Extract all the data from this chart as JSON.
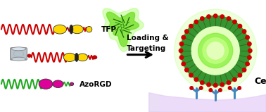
{
  "bg_color": "#ffffff",
  "arrow_text_line1": "Loading &",
  "arrow_text_line2": "Targeting",
  "label_tfp": "TFP",
  "label_azorgd": "AzoRGD",
  "label_cell": "Cell",
  "wavy_red_color": "#CC0000",
  "wavy_green_color": "#22AA22",
  "cb8_color": "#b8c4cc",
  "yellow_oval_color": "#FFD700",
  "magenta_oval_color": "#DD0099",
  "red_dot_color": "#CC0000",
  "nanocarrier_green": "#228B22",
  "glow_color": "#c8ff80",
  "inner_glow": "#90EE90",
  "cell_surface": "#e0c8ee",
  "receptor_color": "#4488BB",
  "figsize": [
    3.78,
    1.59
  ],
  "dpi": 100,
  "xlim": [
    0,
    10
  ],
  "ylim": [
    0,
    4.2
  ]
}
